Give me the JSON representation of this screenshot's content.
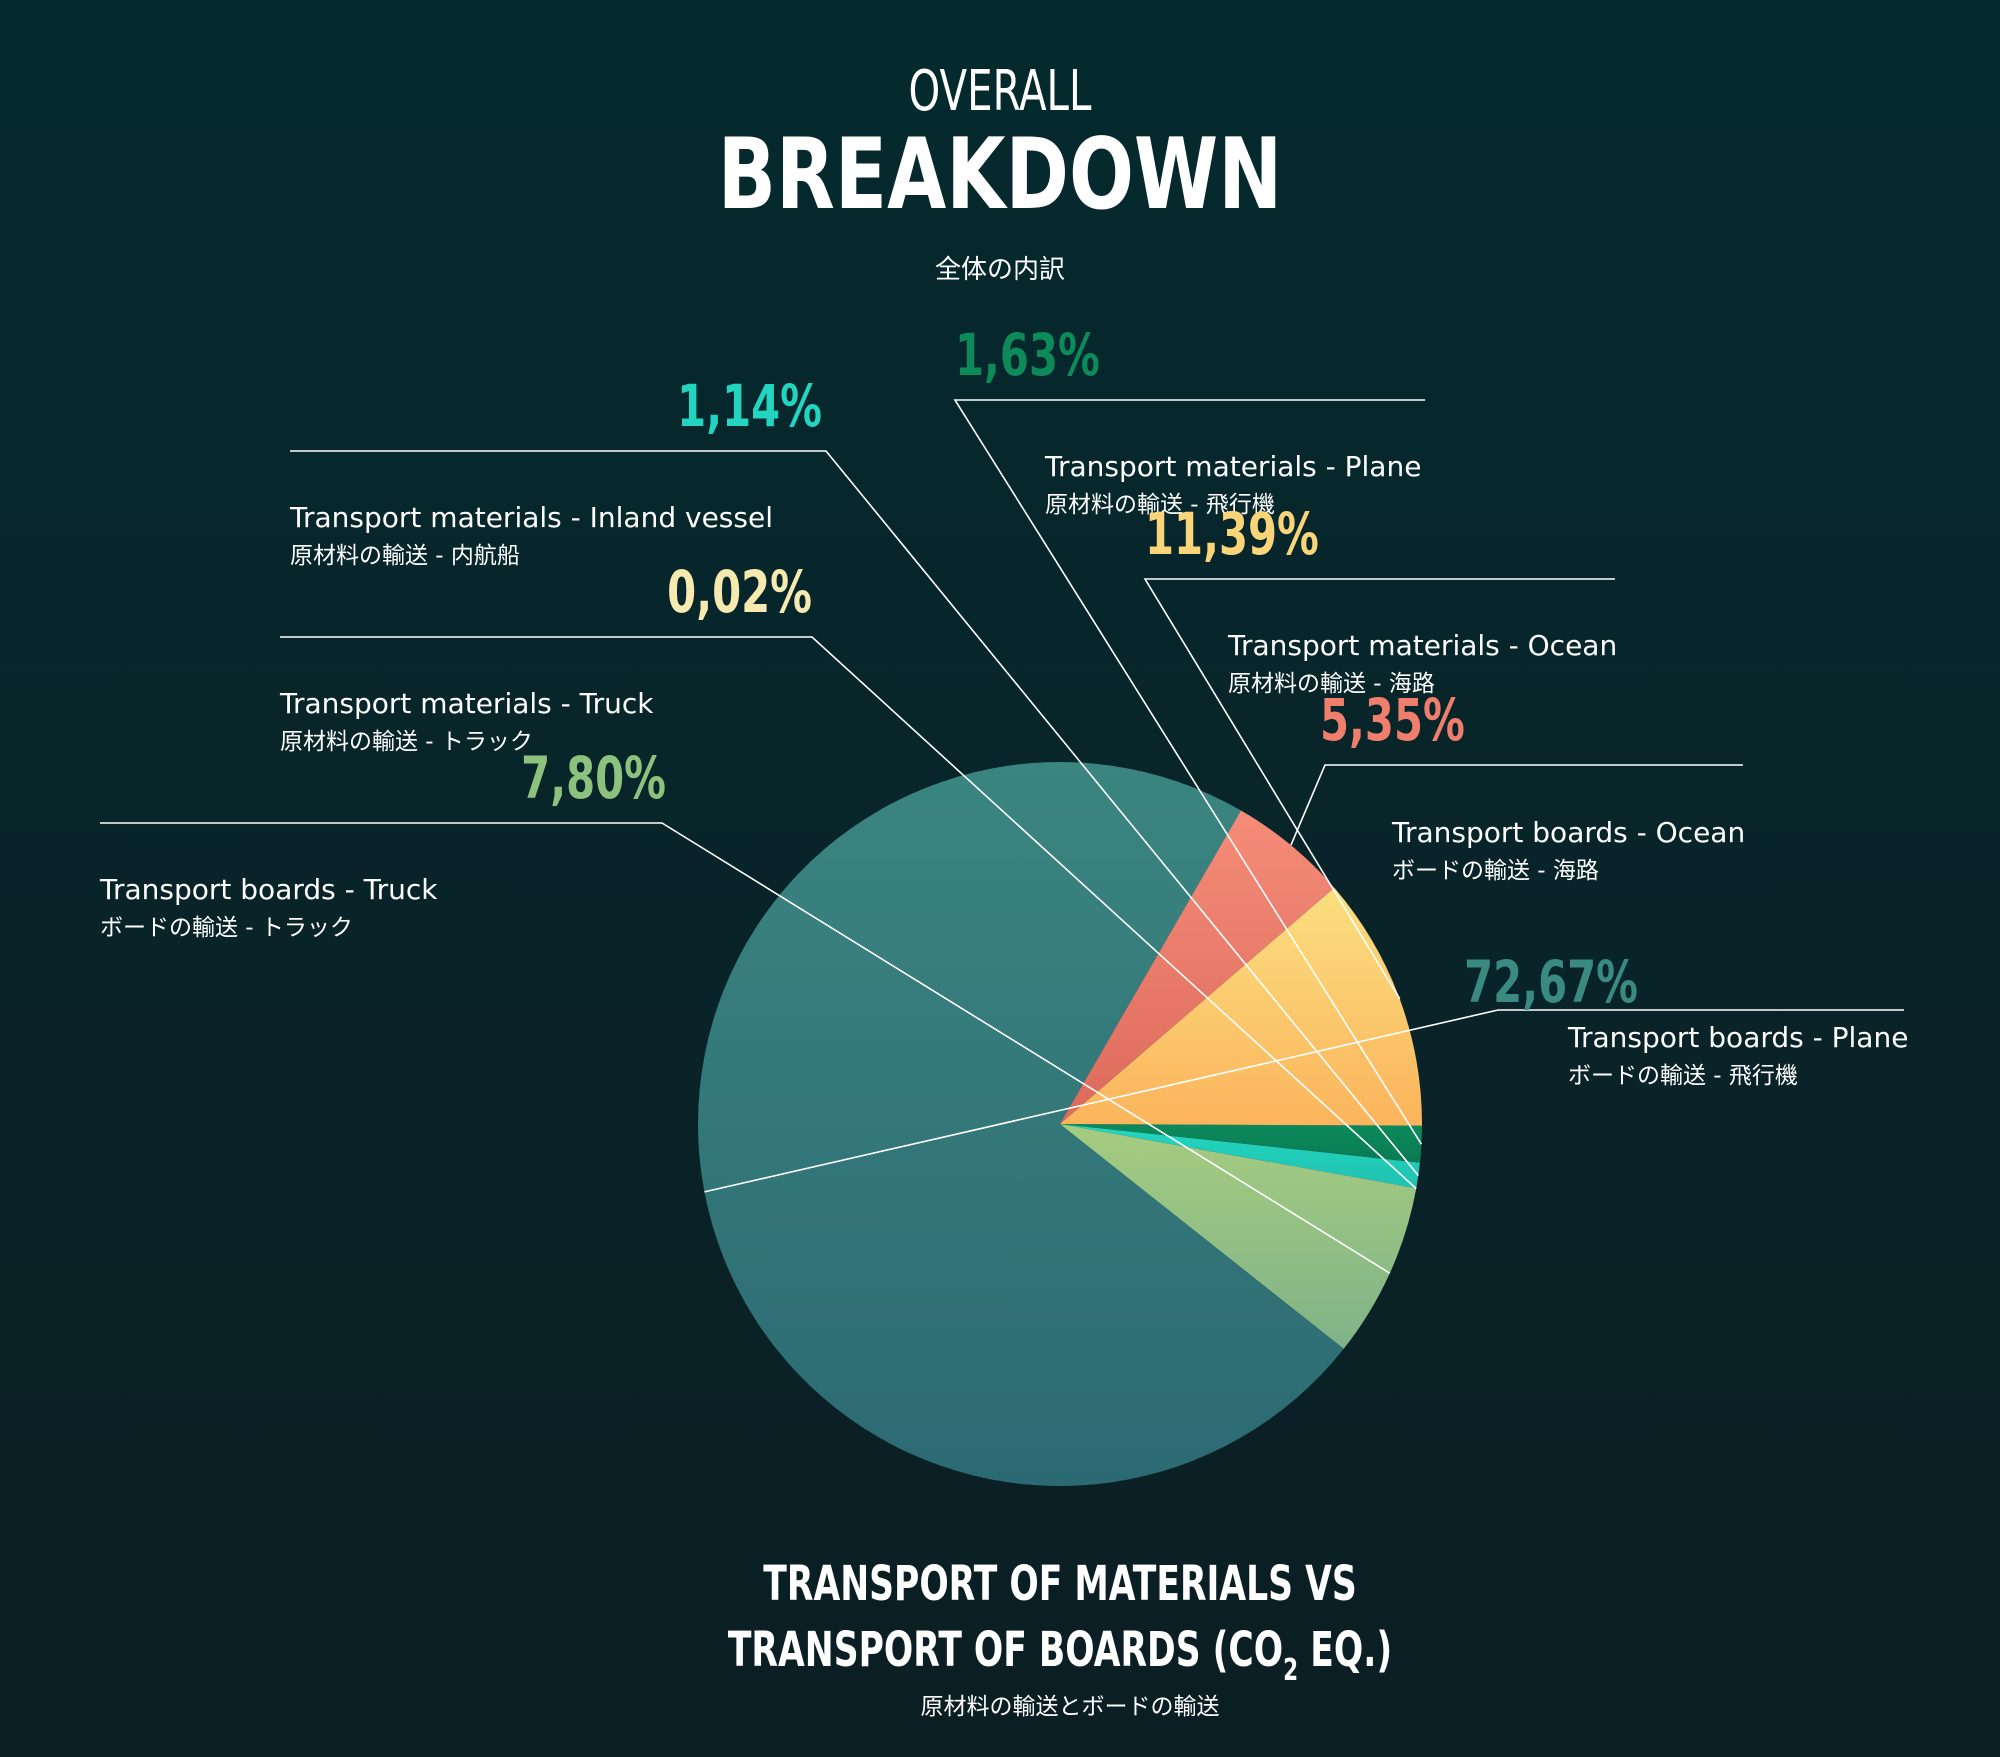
{
  "header": {
    "overline": "OVERALL",
    "title": "BREAKDOWN",
    "subtitle_ja": "全体の内訳"
  },
  "footer": {
    "title_line1": "TRANSPORT OF MATERIALS VS",
    "title_line2_prefix": "TRANSPORT OF BOARDS (CO",
    "title_line2_sub": "2",
    "title_line2_suffix": " EQ.)",
    "subtitle_ja": "原材料の輸送とボードの輸送"
  },
  "chart_data": {
    "type": "pie",
    "unit": "%",
    "start_angle_deg": -60,
    "direction": "counterclockwise",
    "slices": [
      {
        "label_en": "Transport boards - Plane",
        "label_ja": "ボードの輸送 - 飛行機",
        "value": 72.67,
        "value_label": "72,67%",
        "color_top": "#3b8580",
        "color_bottom": "#2c6a73",
        "label_color": "#3a8a82"
      },
      {
        "label_en": "Transport boards - Truck",
        "label_ja": "ボードの輸送 - トラック",
        "value": 7.8,
        "value_label": "7,80%",
        "color_top": "#a6cc80",
        "color_bottom": "#7fb388",
        "label_color": "#8cc27e"
      },
      {
        "label_en": "Transport materials - Truck",
        "label_ja": "原材料の輸送 - トラック",
        "value": 0.02,
        "value_label": "0,02%",
        "color_top": "#f8ecb0",
        "color_bottom": "#f0e0a0",
        "label_color": "#f6eab0"
      },
      {
        "label_en": "Transport materials - Inland vessel",
        "label_ja": "原材料の輸送 - 内航船",
        "value": 1.14,
        "value_label": "1,14%",
        "color_top": "#24d6c0",
        "color_bottom": "#1fc2b0",
        "label_color": "#23d4c0"
      },
      {
        "label_en": "Transport materials - Plane",
        "label_ja": "原材料の輸送 - 飛行機",
        "value": 1.63,
        "value_label": "1,63%",
        "color_top": "#0c8a5c",
        "color_bottom": "#0a7a52",
        "label_color": "#0d8a5a"
      },
      {
        "label_en": "Transport materials - Ocean",
        "label_ja": "原材料の輸送 - 海路",
        "value": 11.39,
        "value_label": "11,39%",
        "color_top": "#fbdf80",
        "color_bottom": "#fbb45c",
        "label_color": "#fad478"
      },
      {
        "label_en": "Transport boards - Ocean",
        "label_ja": "ボードの輸送 - 海路",
        "value": 5.35,
        "value_label": "5,35%",
        "color_top": "#f58c78",
        "color_bottom": "#dd6a5c",
        "label_color": "#f07e6c"
      }
    ]
  }
}
